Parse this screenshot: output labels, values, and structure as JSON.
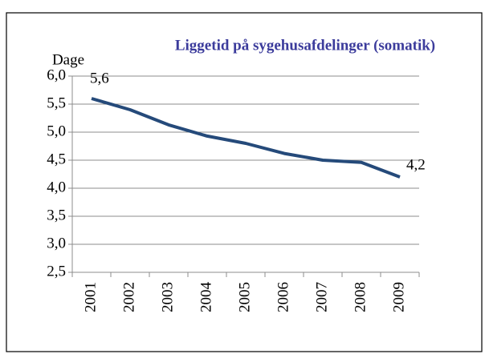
{
  "chart_data": {
    "type": "line",
    "title": "Liggetid  på sygehusafdelinger (somatik)",
    "ylabel": "Dage",
    "categories": [
      "2001",
      "2002",
      "2003",
      "2004",
      "2005",
      "2006",
      "2007",
      "2008",
      "2009"
    ],
    "series": [
      {
        "name": "Liggetid",
        "color": "#254a7a",
        "values": [
          5.6,
          5.4,
          5.13,
          4.93,
          4.8,
          4.62,
          4.5,
          4.46,
          4.2
        ],
        "value_labels": [
          "5,6",
          null,
          null,
          null,
          null,
          null,
          null,
          null,
          "4,2"
        ]
      }
    ],
    "ylim": [
      2.5,
      6.0
    ],
    "yticks": [
      {
        "value": 2.5,
        "label": "2,5"
      },
      {
        "value": 3.0,
        "label": "3,0"
      },
      {
        "value": 3.5,
        "label": "3,5"
      },
      {
        "value": 4.0,
        "label": "4,0"
      },
      {
        "value": 4.5,
        "label": "4,5"
      },
      {
        "value": 5.0,
        "label": "5,0"
      },
      {
        "value": 5.5,
        "label": "5,5"
      },
      {
        "value": 6.0,
        "label": "6,0"
      }
    ],
    "grid": true
  }
}
